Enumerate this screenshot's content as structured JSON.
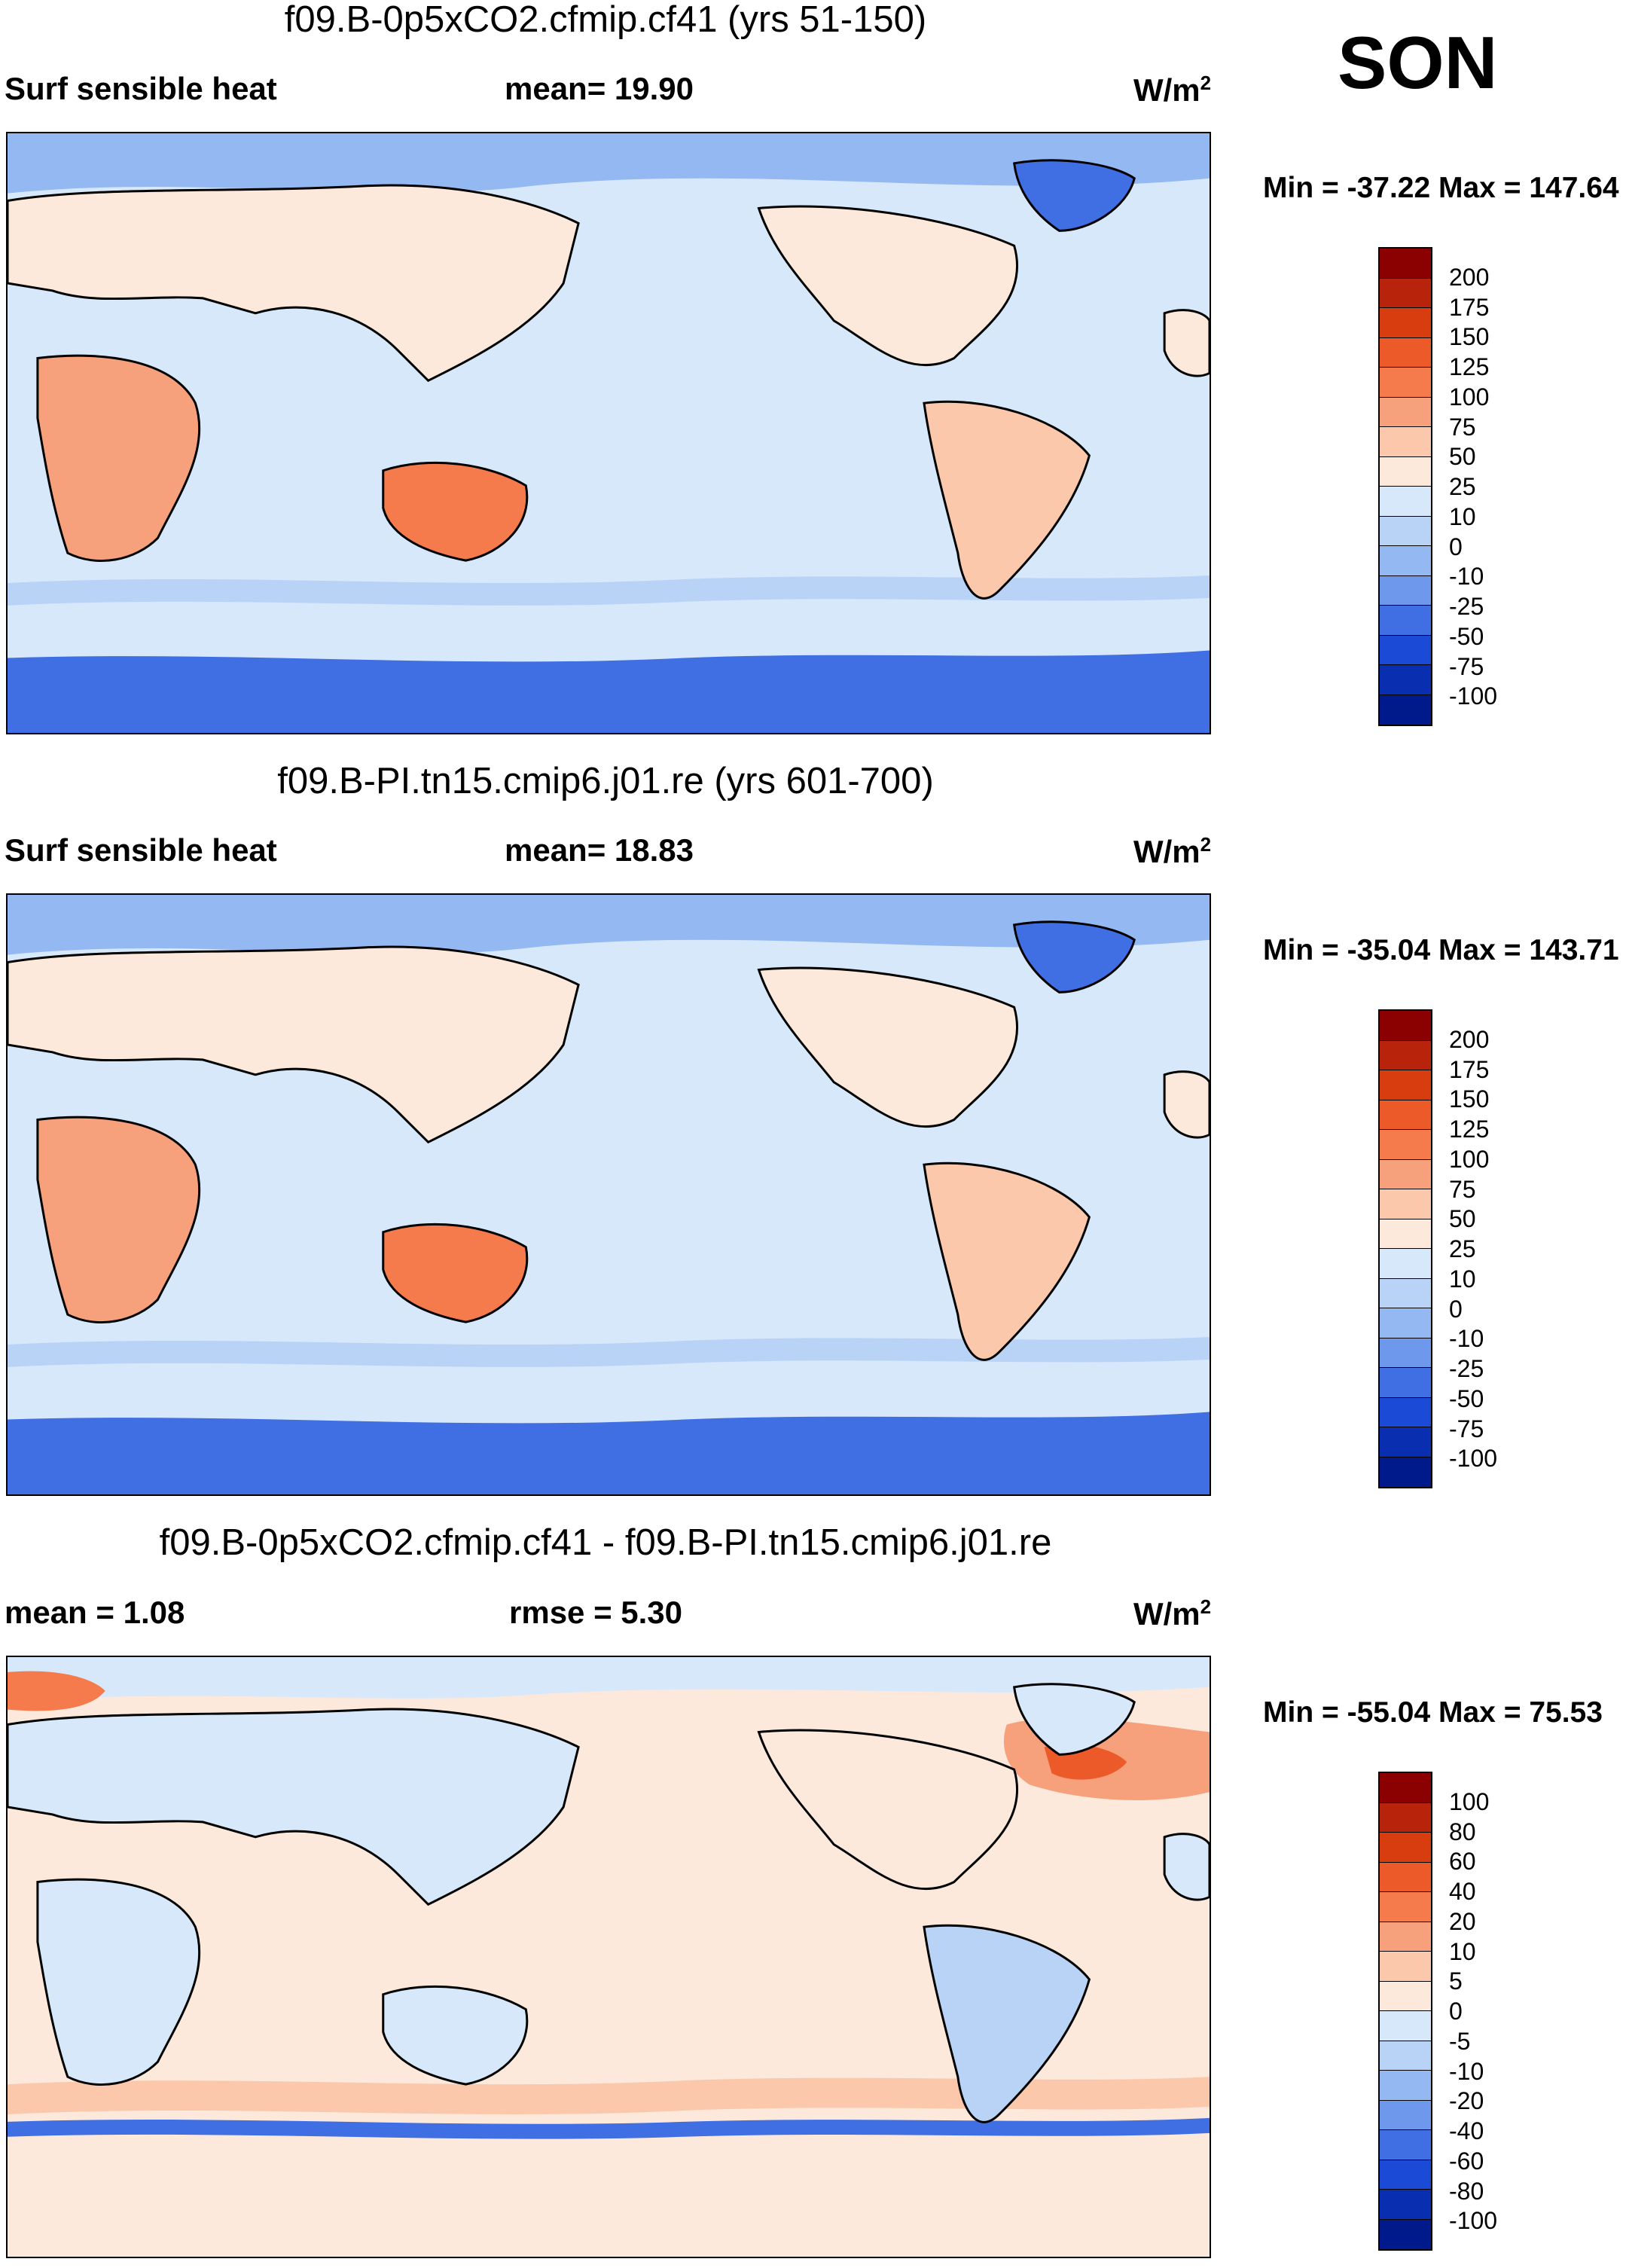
{
  "season": "SON",
  "panels": [
    {
      "title": "f09.B-0p5xCO2.cfmip.cf41 (yrs 51-150)",
      "left_label": "Surf sensible heat",
      "center_label": "mean=  19.90",
      "units": "W/m",
      "units_exp": "2",
      "minmax": "Min = -37.22 Max = 147.64",
      "colorbar_labels": [
        "200",
        "175",
        "150",
        "125",
        "100",
        "75",
        "50",
        "25",
        "10",
        "0",
        "-10",
        "-25",
        "-50",
        "-75",
        "-100"
      ],
      "colorbar_colors": [
        "#8b0000",
        "#b8230c",
        "#d83d10",
        "#ec5a2a",
        "#f57a4c",
        "#f7a07c",
        "#fbc8ac",
        "#fde9db",
        "#d8e8fb",
        "#b9d3f7",
        "#94b8f2",
        "#6e98ec",
        "#3f6fe3",
        "#1a4ad6",
        "#0a2eb0",
        "#001a8c"
      ],
      "base_color": "#d8e8fb"
    },
    {
      "title": "f09.B-PI.tn15.cmip6.j01.re (yrs 601-700)",
      "left_label": "Surf sensible heat",
      "center_label": "mean=  18.83",
      "units": "W/m",
      "units_exp": "2",
      "minmax": "Min = -35.04 Max = 143.71",
      "colorbar_labels": [
        "200",
        "175",
        "150",
        "125",
        "100",
        "75",
        "50",
        "25",
        "10",
        "0",
        "-10",
        "-25",
        "-50",
        "-75",
        "-100"
      ],
      "colorbar_colors": [
        "#8b0000",
        "#b8230c",
        "#d83d10",
        "#ec5a2a",
        "#f57a4c",
        "#f7a07c",
        "#fbc8ac",
        "#fde9db",
        "#d8e8fb",
        "#b9d3f7",
        "#94b8f2",
        "#6e98ec",
        "#3f6fe3",
        "#1a4ad6",
        "#0a2eb0",
        "#001a8c"
      ],
      "base_color": "#d8e8fb"
    },
    {
      "title": "f09.B-0p5xCO2.cfmip.cf41 - f09.B-PI.tn15.cmip6.j01.re",
      "left_label": "mean =    1.08",
      "center_label": "rmse =    5.30",
      "units": "W/m",
      "units_exp": "2",
      "minmax": "Min = -55.04 Max =  75.53",
      "colorbar_labels": [
        "100",
        "80",
        "60",
        "40",
        "20",
        "10",
        "5",
        "0",
        "-5",
        "-10",
        "-20",
        "-40",
        "-60",
        "-80",
        "-100"
      ],
      "colorbar_colors": [
        "#8b0000",
        "#b8230c",
        "#d83d10",
        "#ec5a2a",
        "#f57a4c",
        "#f7a07c",
        "#fbc8ac",
        "#fde9db",
        "#d8e8fb",
        "#b9d3f7",
        "#94b8f2",
        "#6e98ec",
        "#3f6fe3",
        "#1a4ad6",
        "#0a2eb0",
        "#001a8c"
      ],
      "base_color": "#fde9db"
    }
  ]
}
